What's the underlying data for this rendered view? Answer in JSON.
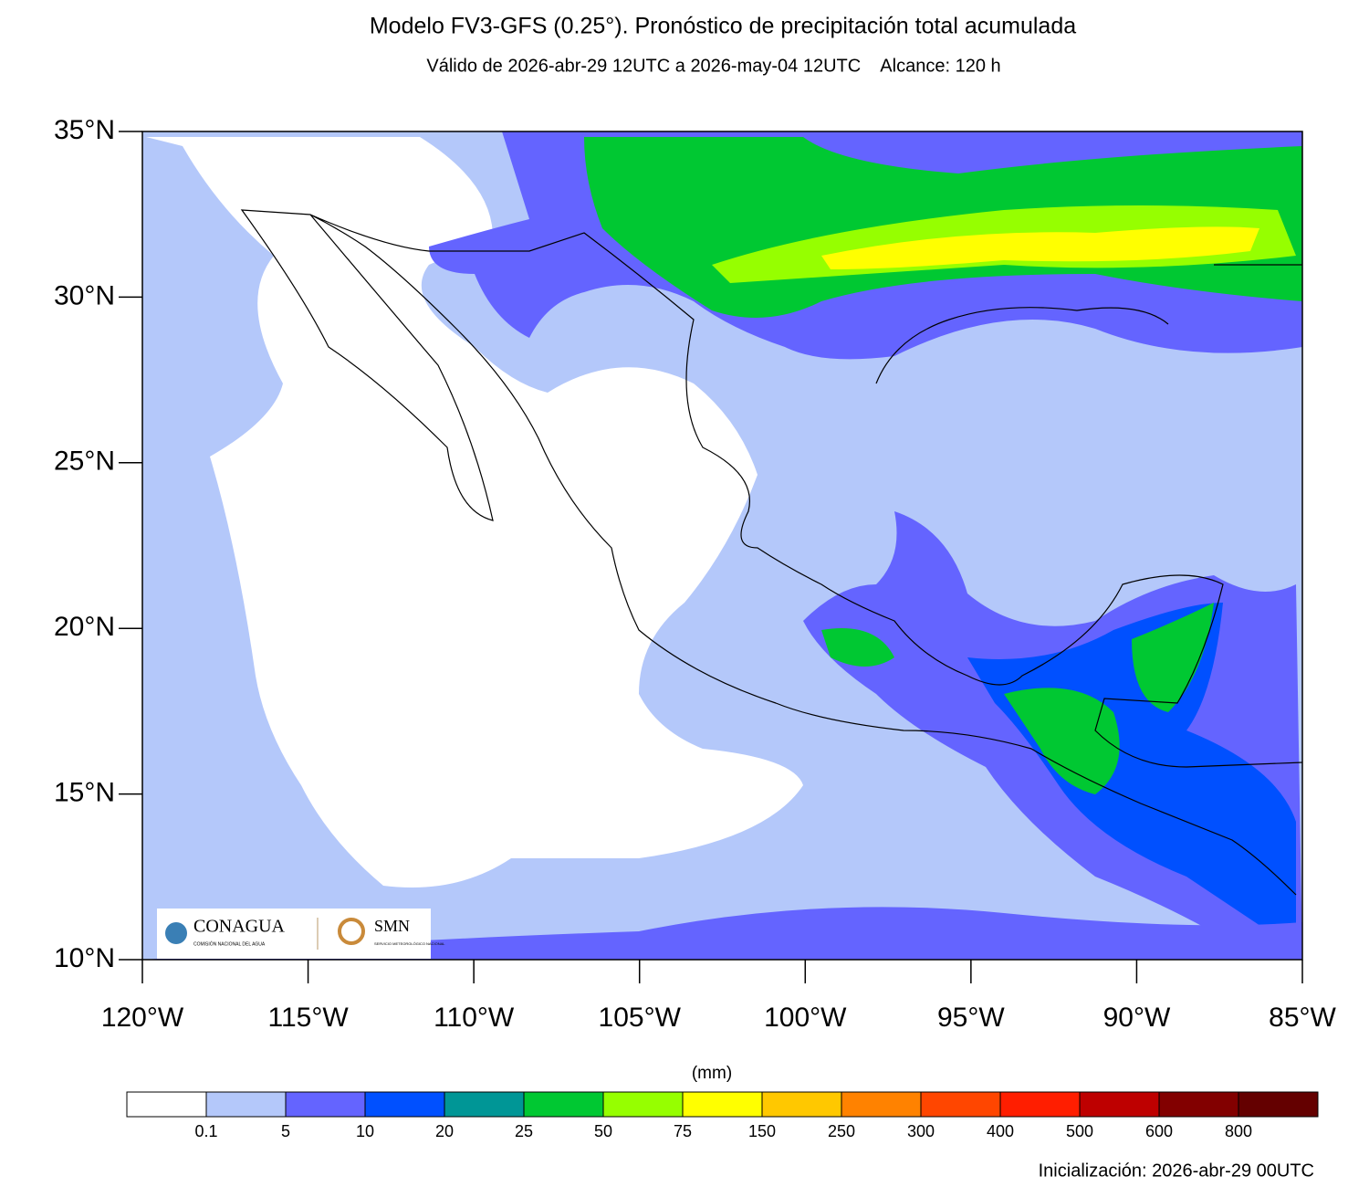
{
  "map": {
    "title": "Modelo FV3-GFS (0.25°). Pronóstico de precipitación total acumulada",
    "subtitle": "Válido de 2026-abr-29 12UTC a 2026-may-04 12UTC    Alcance: 120 h",
    "xlim": [
      -120,
      -85
    ],
    "ylim": [
      10,
      35
    ],
    "xticks": [
      {
        "value": -120,
        "label": "120°W"
      },
      {
        "value": -115,
        "label": "115°W"
      },
      {
        "value": -110,
        "label": "110°W"
      },
      {
        "value": -105,
        "label": "105°W"
      },
      {
        "value": -100,
        "label": "100°W"
      },
      {
        "value": -95,
        "label": "95°W"
      },
      {
        "value": -90,
        "label": "90°W"
      },
      {
        "value": -85,
        "label": "85°W"
      }
    ],
    "yticks": [
      {
        "value": 10,
        "label": "10°N"
      },
      {
        "value": 15,
        "label": "15°N"
      },
      {
        "value": 20,
        "label": "20°N"
      },
      {
        "value": 25,
        "label": "25°N"
      },
      {
        "value": 30,
        "label": "30°N"
      },
      {
        "value": 35,
        "label": "35°N"
      }
    ],
    "colorbar": {
      "unit": "(mm)",
      "levels": [
        0.1,
        5,
        10,
        20,
        25,
        50,
        75,
        150,
        250,
        300,
        400,
        500,
        600,
        800
      ],
      "colors": [
        "#ffffff",
        "#b4c8fa",
        "#6464ff",
        "#0050ff",
        "#009696",
        "#00c832",
        "#96ff00",
        "#ffff00",
        "#ffc800",
        "#ff8200",
        "#ff4600",
        "#ff1e00",
        "#be0000",
        "#820000",
        "#640000"
      ]
    },
    "initialization": "Inicialización: 2026-abr-29 00UTC",
    "logos": {
      "conagua": "CONAGUA",
      "conagua_sub": "COMISIÓN NACIONAL DEL AGUA",
      "smn": "SMN",
      "smn_sub": "SERVICIO METEOROLÓGICO NACIONAL"
    }
  }
}
